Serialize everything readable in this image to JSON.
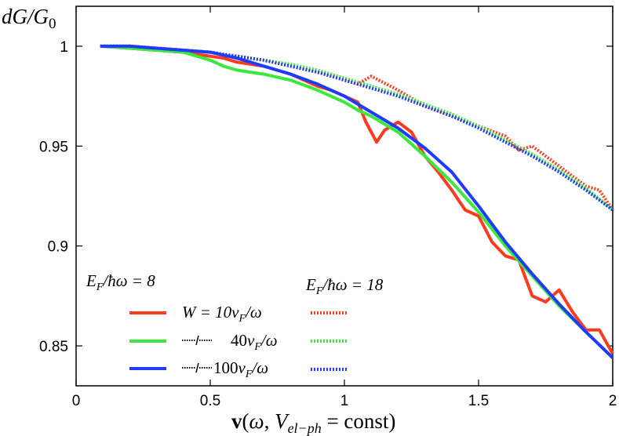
{
  "chart_data": {
    "type": "line",
    "ylabel": "dG/G0",
    "xlabel": "v(ω, Vel−ph = const)",
    "xlim": [
      0,
      2
    ],
    "ylim": [
      0.83,
      1.02
    ],
    "x_ticks": [
      0,
      0.5,
      1,
      1.5,
      2
    ],
    "x_tick_labels": [
      "0",
      "0.5",
      "1",
      "1.5",
      "2"
    ],
    "y_ticks": [
      0.85,
      0.9,
      0.95,
      1
    ],
    "y_tick_labels": [
      "0.85",
      "0.9",
      "0.95",
      "1"
    ],
    "grid": false,
    "legend": {
      "group_left": "E_F/ħω = 8",
      "group_right": "E_F/ħω = 18",
      "rows": [
        "W = 10v_F/ω",
        "40v_F/ω",
        "100v_F/ω"
      ]
    },
    "colors": {
      "W10": "#ff3b1f",
      "W40": "#3de83d",
      "W100": "#1f3bff"
    },
    "series": [
      {
        "name": "W = 10v_F/ω, E_F/ħω = 8",
        "color": "#ff3b1f",
        "style": "solid",
        "x": [
          0.09,
          0.2,
          0.3,
          0.4,
          0.5,
          0.55,
          0.6,
          0.7,
          0.75,
          0.8,
          0.85,
          0.9,
          0.95,
          1.0,
          1.05,
          1.08,
          1.12,
          1.15,
          1.2,
          1.25,
          1.3,
          1.35,
          1.4,
          1.45,
          1.5,
          1.55,
          1.6,
          1.65,
          1.7,
          1.75,
          1.8,
          1.85,
          1.9,
          1.95,
          2.0
        ],
        "y": [
          1.0,
          0.999,
          0.998,
          0.997,
          0.995,
          0.994,
          0.992,
          0.99,
          0.988,
          0.986,
          0.983,
          0.98,
          0.978,
          0.975,
          0.972,
          0.962,
          0.952,
          0.958,
          0.962,
          0.957,
          0.945,
          0.937,
          0.928,
          0.918,
          0.915,
          0.902,
          0.895,
          0.893,
          0.875,
          0.872,
          0.878,
          0.867,
          0.858,
          0.858,
          0.846
        ]
      },
      {
        "name": "W = 40v_F/ω, E_F/ħω = 8",
        "color": "#3de83d",
        "style": "solid",
        "x": [
          0.09,
          0.2,
          0.3,
          0.4,
          0.5,
          0.55,
          0.6,
          0.7,
          0.8,
          0.9,
          1.0,
          1.05,
          1.1,
          1.2,
          1.3,
          1.4,
          1.5,
          1.6,
          1.7,
          1.8,
          1.9,
          2.0
        ],
        "y": [
          1.0,
          0.999,
          0.998,
          0.997,
          0.993,
          0.99,
          0.988,
          0.986,
          0.983,
          0.978,
          0.972,
          0.968,
          0.965,
          0.957,
          0.945,
          0.932,
          0.917,
          0.9,
          0.885,
          0.87,
          0.857,
          0.844
        ]
      },
      {
        "name": "W = 100v_F/ω, E_F/ħω = 8",
        "color": "#1f3bff",
        "style": "solid",
        "x": [
          0.09,
          0.2,
          0.3,
          0.4,
          0.5,
          0.6,
          0.7,
          0.8,
          0.9,
          1.0,
          1.1,
          1.2,
          1.3,
          1.4,
          1.5,
          1.6,
          1.7,
          1.8,
          1.9,
          2.0
        ],
        "y": [
          1.0,
          1.0,
          0.999,
          0.998,
          0.997,
          0.994,
          0.99,
          0.986,
          0.981,
          0.975,
          0.967,
          0.959,
          0.949,
          0.937,
          0.92,
          0.902,
          0.886,
          0.871,
          0.857,
          0.844
        ]
      },
      {
        "name": "W = 10v_F/ω, E_F/ħω = 18",
        "color": "#ff3b1f",
        "style": "dotted",
        "x": [
          0.09,
          0.2,
          0.3,
          0.4,
          0.5,
          0.6,
          0.7,
          0.8,
          0.9,
          1.0,
          1.05,
          1.1,
          1.2,
          1.3,
          1.4,
          1.5,
          1.6,
          1.65,
          1.7,
          1.75,
          1.8,
          1.9,
          1.95,
          2.0
        ],
        "y": [
          1.0,
          1.0,
          0.999,
          0.998,
          0.997,
          0.995,
          0.993,
          0.99,
          0.987,
          0.984,
          0.981,
          0.985,
          0.978,
          0.97,
          0.965,
          0.96,
          0.955,
          0.948,
          0.95,
          0.945,
          0.94,
          0.93,
          0.928,
          0.918
        ]
      },
      {
        "name": "W = 40v_F/ω, E_F/ħω = 18",
        "color": "#3de83d",
        "style": "dotted",
        "x": [
          0.09,
          0.2,
          0.3,
          0.4,
          0.5,
          0.6,
          0.7,
          0.8,
          0.9,
          1.0,
          1.1,
          1.2,
          1.3,
          1.4,
          1.5,
          1.6,
          1.7,
          1.8,
          1.9,
          2.0
        ],
        "y": [
          1.0,
          1.0,
          0.999,
          0.998,
          0.997,
          0.995,
          0.993,
          0.991,
          0.988,
          0.984,
          0.98,
          0.976,
          0.971,
          0.966,
          0.96,
          0.953,
          0.946,
          0.938,
          0.929,
          0.918
        ]
      },
      {
        "name": "W = 100v_F/ω, E_F/ħω = 18",
        "color": "#1f3bff",
        "style": "dotted",
        "x": [
          0.09,
          0.2,
          0.3,
          0.4,
          0.5,
          0.6,
          0.7,
          0.8,
          0.9,
          1.0,
          1.1,
          1.2,
          1.3,
          1.4,
          1.5,
          1.6,
          1.7,
          1.8,
          1.9,
          2.0
        ],
        "y": [
          1.0,
          1.0,
          0.999,
          0.998,
          0.997,
          0.995,
          0.993,
          0.99,
          0.987,
          0.983,
          0.979,
          0.975,
          0.97,
          0.965,
          0.959,
          0.952,
          0.945,
          0.937,
          0.928,
          0.918
        ]
      }
    ]
  }
}
